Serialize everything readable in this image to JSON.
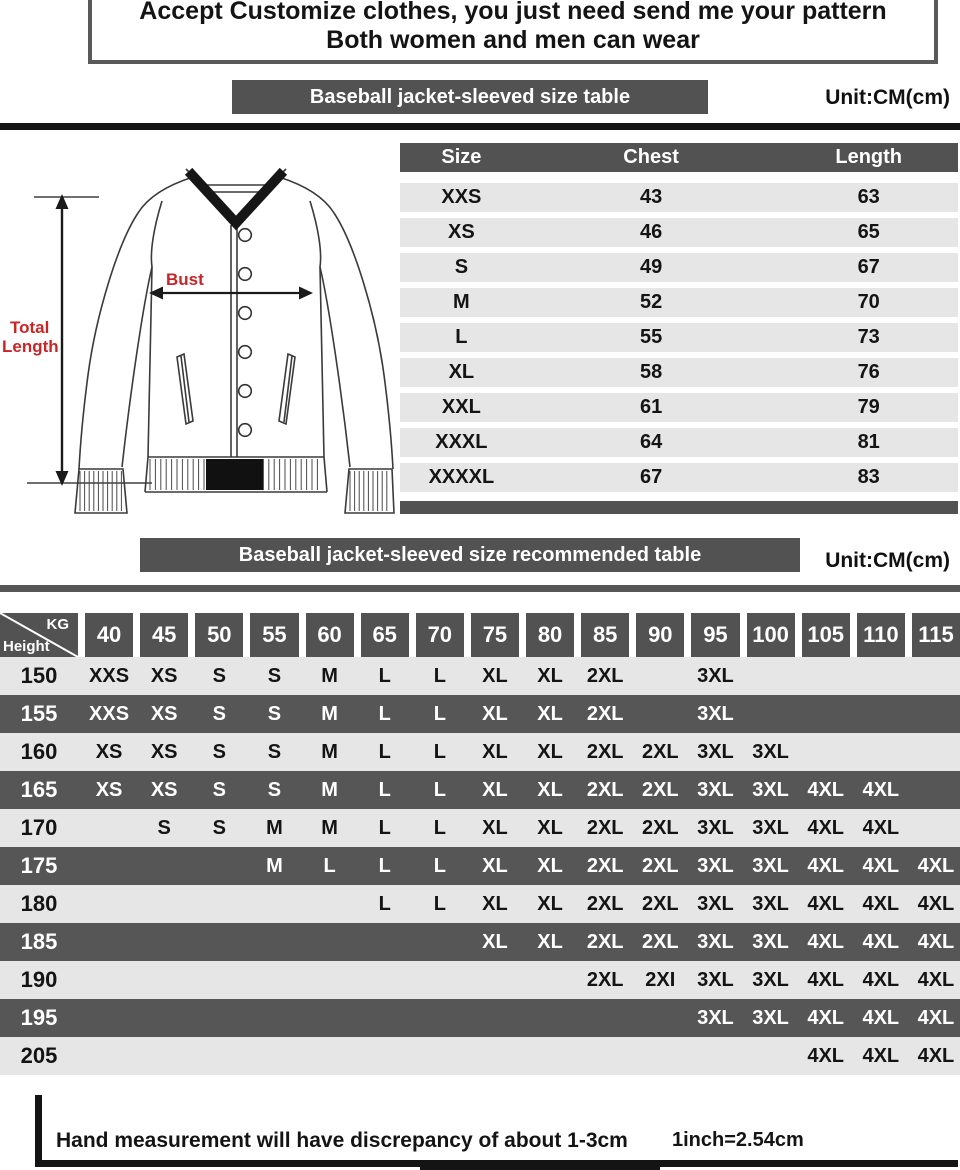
{
  "header": {
    "line1": "Accept Customize clothes, you just need send me your pattern",
    "line2": "Both women and men can wear"
  },
  "size_table": {
    "title": "Baseball jacket-sleeved size  table",
    "unit": "Unit:CM(cm)",
    "columns": [
      "Size",
      "Chest",
      "Length"
    ],
    "rows": [
      [
        "XXS",
        "43",
        "63"
      ],
      [
        "XS",
        "46",
        "65"
      ],
      [
        "S",
        "49",
        "67"
      ],
      [
        "M",
        "52",
        "70"
      ],
      [
        "L",
        "55",
        "73"
      ],
      [
        "XL",
        "58",
        "76"
      ],
      [
        "XXL",
        "61",
        "79"
      ],
      [
        "XXXL",
        "64",
        "81"
      ],
      [
        "XXXXL",
        "67",
        "83"
      ]
    ]
  },
  "jacket": {
    "bust_label": "Bust",
    "total_label_1": "Total",
    "total_label_2": "Length"
  },
  "recommended_table": {
    "title": "Baseball jacket-sleeved size recommended table",
    "unit": "Unit:CM(cm)",
    "corner_top": "KG",
    "corner_bottom": "Height",
    "weights": [
      "40",
      "45",
      "50",
      "55",
      "60",
      "65",
      "70",
      "75",
      "80",
      "85",
      "90",
      "95",
      "100",
      "105",
      "110",
      "115"
    ],
    "rows": [
      {
        "height": "150",
        "cells": [
          "XXS",
          "XS",
          "S",
          "S",
          "M",
          "L",
          "L",
          "XL",
          "XL",
          "2XL",
          "",
          "3XL",
          "",
          "",
          "",
          ""
        ]
      },
      {
        "height": "155",
        "cells": [
          "XXS",
          "XS",
          "S",
          "S",
          "M",
          "L",
          "L",
          "XL",
          "XL",
          "2XL",
          "",
          "3XL",
          "",
          "",
          "",
          ""
        ]
      },
      {
        "height": "160",
        "cells": [
          "XS",
          "XS",
          "S",
          "S",
          "M",
          "L",
          "L",
          "XL",
          "XL",
          "2XL",
          "2XL",
          "3XL",
          "3XL",
          "",
          "",
          ""
        ]
      },
      {
        "height": "165",
        "cells": [
          "XS",
          "XS",
          "S",
          "S",
          "M",
          "L",
          "L",
          "XL",
          "XL",
          "2XL",
          "2XL",
          "3XL",
          "3XL",
          "4XL",
          "4XL",
          ""
        ]
      },
      {
        "height": "170",
        "cells": [
          "",
          "S",
          "S",
          "M",
          "M",
          "L",
          "L",
          "XL",
          "XL",
          "2XL",
          "2XL",
          "3XL",
          "3XL",
          "4XL",
          "4XL",
          ""
        ]
      },
      {
        "height": "175",
        "cells": [
          "",
          "",
          "",
          "M",
          "L",
          "L",
          "L",
          "XL",
          "XL",
          "2XL",
          "2XL",
          "3XL",
          "3XL",
          "4XL",
          "4XL",
          "4XL"
        ]
      },
      {
        "height": "180",
        "cells": [
          "",
          "",
          "",
          "",
          "",
          "L",
          "L",
          "XL",
          "XL",
          "2XL",
          "2XL",
          "3XL",
          "3XL",
          "4XL",
          "4XL",
          "4XL"
        ]
      },
      {
        "height": "185",
        "cells": [
          "",
          "",
          "",
          "",
          "",
          "",
          "",
          "XL",
          "XL",
          "2XL",
          "2XL",
          "3XL",
          "3XL",
          "4XL",
          "4XL",
          "4XL"
        ]
      },
      {
        "height": "190",
        "cells": [
          "",
          "",
          "",
          "",
          "",
          "",
          "",
          "",
          "",
          "2XL",
          "2XI",
          "3XL",
          "3XL",
          "4XL",
          "4XL",
          "4XL"
        ]
      },
      {
        "height": "195",
        "cells": [
          "",
          "",
          "",
          "",
          "",
          "",
          "",
          "",
          "",
          "",
          "",
          "3XL",
          "3XL",
          "4XL",
          "4XL",
          "4XL"
        ]
      },
      {
        "height": "205",
        "cells": [
          "",
          "",
          "",
          "",
          "",
          "",
          "",
          "",
          "",
          "",
          "",
          "",
          "",
          "4XL",
          "4XL",
          "4XL"
        ]
      }
    ]
  },
  "footer": {
    "note": "Hand measurement will have discrepancy of about  1-3cm",
    "conversion": "1inch=2.54cm"
  },
  "colors": {
    "bar_dark": "#525252",
    "row_light": "#e6e6e6",
    "row_dark": "#565656",
    "accent_red": "#c82527",
    "line_black": "#141414"
  }
}
